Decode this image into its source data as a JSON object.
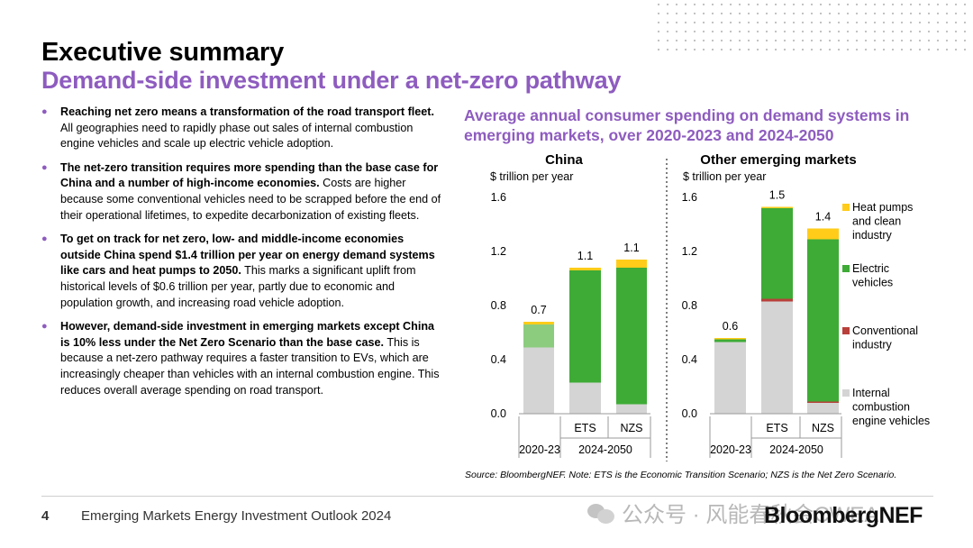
{
  "header": {
    "title": "Executive summary",
    "subtitle": "Demand-side investment under a net-zero pathway"
  },
  "bullets": [
    {
      "bold": "Reaching net zero means a transformation of the road transport fleet.",
      "text": " All geographies need to rapidly phase out sales of internal combustion engine vehicles and scale up electric vehicle adoption."
    },
    {
      "bold": "The net-zero transition requires more spending than the base case for China and a number of high-income economies.",
      "text": " Costs are higher because some conventional vehicles need to be scrapped before the end of their operational lifetimes, to expedite decarbonization of existing fleets."
    },
    {
      "bold": "To get on track for net zero, low- and middle-income economies outside China spend $1.4 trillion per year on energy demand systems like cars and heat pumps to 2050.",
      "text": " This marks a significant uplift from historical levels of $0.6 trillion per year, partly due to economic and population growth, and increasing road vehicle adoption."
    },
    {
      "bold": "However, demand-side investment in emerging markets except China is 10% less under the Net Zero Scenario than the base case.",
      "text": " This is because a net-zero pathway requires a faster transition to EVs, which are increasingly cheaper than vehicles with an internal combustion engine. This reduces overall average spending on road transport."
    }
  ],
  "chart_title": "Average annual consumer spending on demand systems in emerging markets, over 2020-2023 and 2024-2050",
  "chart_data": [
    {
      "type": "bar",
      "stacked": true,
      "title": "China",
      "ylabel": "$ trillion per year",
      "ylim": [
        0,
        1.6
      ],
      "yticks": [
        "0.0",
        "0.4",
        "0.8",
        "1.2",
        "1.6"
      ],
      "categories": [
        "",
        "ETS",
        "NZS"
      ],
      "groups": [
        {
          "label": "2020-23",
          "categories": [
            ""
          ]
        },
        {
          "label": "2024-2050",
          "categories": [
            "ETS",
            "NZS"
          ]
        }
      ],
      "totals_labels": [
        "0.7",
        "1.1",
        "1.1"
      ],
      "series": [
        {
          "name": "Internal combustion engine vehicles",
          "values": [
            0.49,
            0.23,
            0.07
          ]
        },
        {
          "name": "Conventional industry",
          "values": [
            0.0,
            0.0,
            0.0
          ]
        },
        {
          "name": "Electric vehicles",
          "values": [
            0.17,
            0.83,
            1.01
          ],
          "alt_color_first": "#8ccc7f"
        },
        {
          "name": "Heat pumps and clean industry",
          "values": [
            0.02,
            0.02,
            0.06
          ]
        }
      ]
    },
    {
      "type": "bar",
      "stacked": true,
      "title": "Other emerging markets",
      "ylabel": "$ trillion per year",
      "ylim": [
        0,
        1.6
      ],
      "yticks": [
        "0.0",
        "0.4",
        "0.8",
        "1.2",
        "1.6"
      ],
      "categories": [
        "",
        "ETS",
        "NZS"
      ],
      "groups": [
        {
          "label": "2020-23",
          "categories": [
            ""
          ]
        },
        {
          "label": "2024-2050",
          "categories": [
            "ETS",
            "NZS"
          ]
        }
      ],
      "totals_labels": [
        "0.6",
        "1.5",
        "1.4"
      ],
      "series": [
        {
          "name": "Internal combustion engine vehicles",
          "values": [
            0.53,
            0.83,
            0.08
          ]
        },
        {
          "name": "Conventional industry",
          "values": [
            0.0,
            0.02,
            0.01
          ]
        },
        {
          "name": "Electric vehicles",
          "values": [
            0.02,
            0.67,
            1.2
          ]
        },
        {
          "name": "Heat pumps and clean industry",
          "values": [
            0.01,
            0.01,
            0.08
          ]
        }
      ]
    }
  ],
  "legend": [
    {
      "label": "Heat pumps and clean industry",
      "color": "#ffcc1a",
      "lines": [
        "Heat pumps",
        "and clean",
        "industry"
      ]
    },
    {
      "label": "Electric vehicles",
      "color": "#3dab36",
      "lines": [
        "Electric",
        "vehicles"
      ]
    },
    {
      "label": "Conventional industry",
      "color": "#b8403a",
      "lines": [
        "Conventional",
        "industry"
      ]
    },
    {
      "label": "Internal combustion engine vehicles",
      "color": "#d4d4d4",
      "lines": [
        "Internal",
        "combustion",
        "engine vehicles"
      ]
    }
  ],
  "colors": {
    "ice": "#d4d4d4",
    "conventional": "#b8403a",
    "ev": "#3dab36",
    "heat": "#ffcc1a",
    "accent": "#8e5cbf"
  },
  "source": "Source: BloombergNEF. Note: ETS is the Economic Transition Scenario; NZS is the Net Zero Scenario.",
  "footer": {
    "page": "4",
    "report": "Emerging Markets Energy Investment Outlook 2024",
    "watermark": "公众号 · 风能春秋会CWEA",
    "logo": "BloombergNEF"
  }
}
